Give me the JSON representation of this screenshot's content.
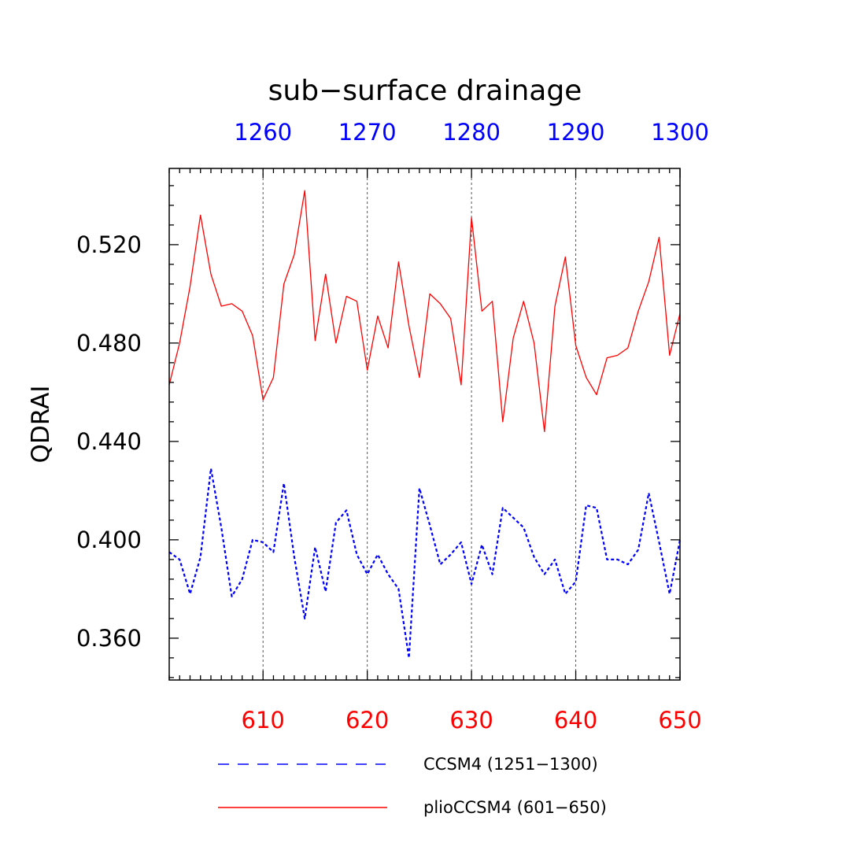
{
  "chart_data": {
    "type": "line",
    "title": "sub−surface drainage",
    "ylabel": "QDRAI",
    "xlabel": "",
    "ylim": [
      0.343,
      0.551
    ],
    "yticks": [
      {
        "value": 0.36,
        "label": "0.360"
      },
      {
        "value": 0.4,
        "label": "0.400"
      },
      {
        "value": 0.44,
        "label": "0.440"
      },
      {
        "value": 0.48,
        "label": "0.480"
      },
      {
        "value": 0.52,
        "label": "0.520"
      }
    ],
    "y_minor_step": 0.008,
    "x_bottom": {
      "range": [
        601,
        650
      ],
      "color": "#ff0000",
      "ticks": [
        610,
        620,
        630,
        640,
        650
      ],
      "tick_labels": [
        "610",
        "620",
        "630",
        "640",
        "650"
      ]
    },
    "x_top": {
      "range": [
        1251,
        1300
      ],
      "color": "#0000ff",
      "ticks": [
        1260,
        1270,
        1280,
        1290,
        1300
      ],
      "tick_labels": [
        "1260",
        "1270",
        "1280",
        "1290",
        "1300"
      ]
    },
    "vertical_gridlines_at": [
      610,
      620,
      630,
      640
    ],
    "series": [
      {
        "name": "CCSM4 (1251−1300)",
        "axis": "top",
        "color": "#0000ff",
        "dash": "dashed",
        "x": [
          1251,
          1252,
          1253,
          1254,
          1255,
          1256,
          1257,
          1258,
          1259,
          1260,
          1261,
          1262,
          1263,
          1264,
          1265,
          1266,
          1267,
          1268,
          1269,
          1270,
          1271,
          1272,
          1273,
          1274,
          1275,
          1276,
          1277,
          1278,
          1279,
          1280,
          1281,
          1282,
          1283,
          1284,
          1285,
          1286,
          1287,
          1288,
          1289,
          1290,
          1291,
          1292,
          1293,
          1294,
          1295,
          1296,
          1297,
          1298,
          1299,
          1300
        ],
        "values": [
          0.395,
          0.392,
          0.378,
          0.393,
          0.429,
          0.405,
          0.377,
          0.384,
          0.4,
          0.399,
          0.395,
          0.423,
          0.393,
          0.368,
          0.397,
          0.379,
          0.407,
          0.412,
          0.394,
          0.386,
          0.394,
          0.386,
          0.38,
          0.352,
          0.421,
          0.406,
          0.39,
          0.394,
          0.399,
          0.382,
          0.398,
          0.386,
          0.413,
          0.409,
          0.405,
          0.393,
          0.386,
          0.392,
          0.378,
          0.383,
          0.414,
          0.413,
          0.392,
          0.392,
          0.39,
          0.396,
          0.419,
          0.399,
          0.378,
          0.4
        ]
      },
      {
        "name": "plioCCSM4 (601−650)",
        "axis": "bottom",
        "color": "#ff0000",
        "dash": "solid",
        "x": [
          601,
          602,
          603,
          604,
          605,
          606,
          607,
          608,
          609,
          610,
          611,
          612,
          613,
          614,
          615,
          616,
          617,
          618,
          619,
          620,
          621,
          622,
          623,
          624,
          625,
          626,
          627,
          628,
          629,
          630,
          631,
          632,
          633,
          634,
          635,
          636,
          637,
          638,
          639,
          640,
          641,
          642,
          643,
          644,
          645,
          646,
          647,
          648,
          649,
          650
        ],
        "values": [
          0.463,
          0.48,
          0.503,
          0.532,
          0.508,
          0.495,
          0.496,
          0.493,
          0.483,
          0.457,
          0.466,
          0.504,
          0.516,
          0.542,
          0.481,
          0.508,
          0.48,
          0.499,
          0.497,
          0.469,
          0.491,
          0.478,
          0.513,
          0.487,
          0.466,
          0.5,
          0.496,
          0.49,
          0.463,
          0.531,
          0.493,
          0.497,
          0.448,
          0.482,
          0.497,
          0.48,
          0.444,
          0.495,
          0.515,
          0.479,
          0.466,
          0.459,
          0.474,
          0.475,
          0.478,
          0.493,
          0.505,
          0.523,
          0.475,
          0.492
        ]
      }
    ],
    "legend": {
      "placement": "bottom",
      "entries": [
        "CCSM4 (1251−1300)",
        "plioCCSM4 (601−650)"
      ]
    }
  }
}
